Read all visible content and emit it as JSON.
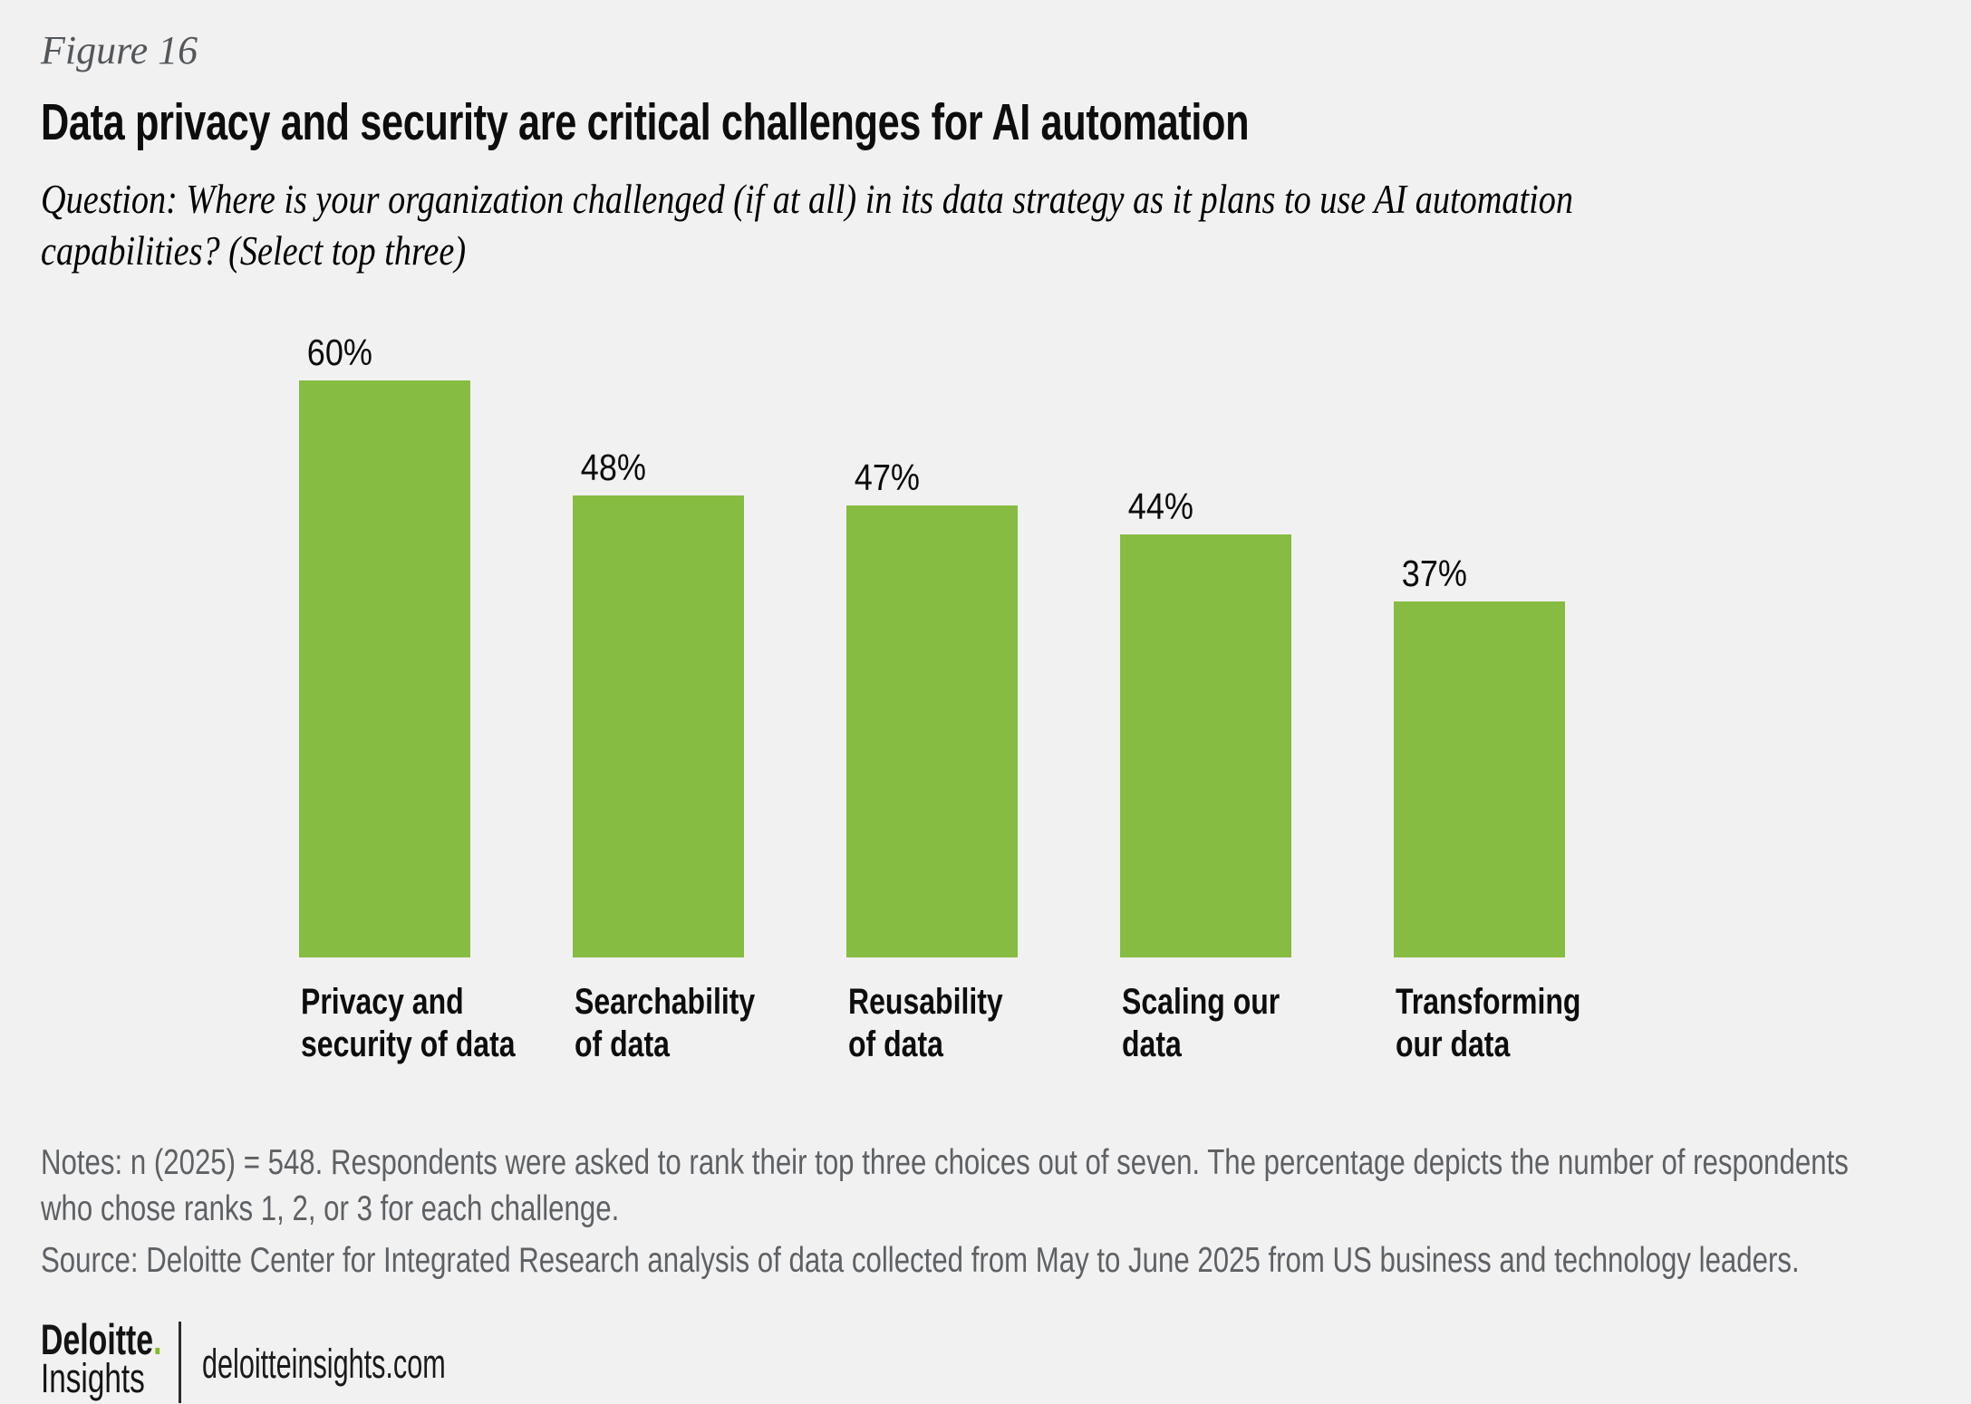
{
  "figure_label": "Figure 16",
  "title": "Data privacy and security are critical challenges for AI automation",
  "question": {
    "line1": "Question: Where is your organization challenged (if at all) in its data strategy as it plans to use AI automation",
    "line2": "capabilities? (Select top three)"
  },
  "chart_data": {
    "type": "bar",
    "title": "Data privacy and security are critical challenges for AI automation",
    "categories": [
      "Privacy and security of data",
      "Searchability of data",
      "Reusability of data",
      "Scaling our data",
      "Transforming our data"
    ],
    "values": [
      60,
      48,
      47,
      44,
      37
    ],
    "value_labels": [
      "60%",
      "48%",
      "47%",
      "44%",
      "37%"
    ],
    "category_lines": [
      [
        "Privacy and",
        "security of data"
      ],
      [
        "Searchability",
        "of data"
      ],
      [
        "Reusability",
        "of data"
      ],
      [
        "Scaling our",
        "data"
      ],
      [
        "Transforming",
        "our data"
      ]
    ],
    "unit": "%",
    "ylim": [
      0,
      60
    ],
    "grid": false,
    "legend": false,
    "bar_color": "#86BC41"
  },
  "notes": {
    "line1": "Notes: n (2025) = 548. Respondents were asked to rank their top three choices out of seven. The percentage depicts the number of respondents",
    "line2": "who chose ranks 1, 2, or 3 for each challenge."
  },
  "source": "Source: Deloitte Center for Integrated Research analysis of data collected from May to June 2025 from US business and technology leaders.",
  "footer": {
    "brand_name": "Deloitte",
    "brand_dot": ".",
    "brand_sub": "Insights",
    "site": "deloitteinsights.com"
  },
  "colors": {
    "background": "#F1F1F2",
    "bar_green": "#86BC41",
    "brand_green": "#86BC25",
    "text_dark": "#0D0D0D",
    "text_gray": "#5E6164",
    "figure_label_gray": "#54575A"
  }
}
